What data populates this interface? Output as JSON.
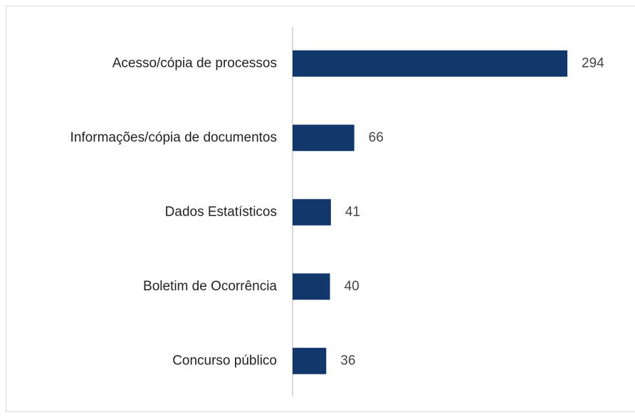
{
  "chart_data": {
    "type": "bar",
    "orientation": "horizontal",
    "categories": [
      "Acesso/cópia de processos",
      "Informações/cópia de documentos",
      "Dados Estatísticos",
      "Boletim de Ocorrência",
      "Concurso público"
    ],
    "values": [
      294,
      66,
      41,
      40,
      36
    ],
    "color": "#12376a"
  }
}
